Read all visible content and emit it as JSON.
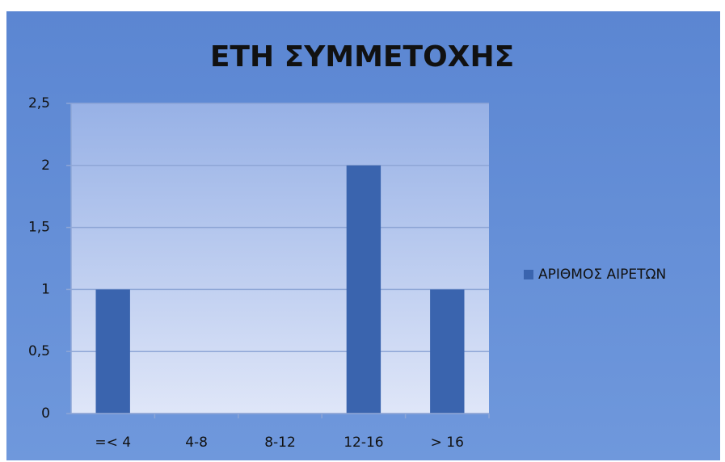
{
  "chart_data": {
    "type": "bar",
    "title": "ΕΤΗ ΣΥΜΜΕΤΟΧΗΣ",
    "categories": [
      "=< 4",
      "4-8",
      "8-12",
      "12-16",
      "> 16"
    ],
    "series": [
      {
        "name": "ΑΡΙΘΜΟΣ ΑΙΡΕΤΩΝ",
        "color": "#3a64ae",
        "values": [
          1,
          0,
          0,
          2,
          1
        ]
      }
    ],
    "ylim": [
      0,
      2.5
    ],
    "yticks": [
      0,
      {
        "value": 0.5,
        "label": "0,5"
      },
      1,
      {
        "value": 1.5,
        "label": "1,5"
      },
      2,
      {
        "value": 2.5,
        "label": "2,5"
      }
    ],
    "grid": true,
    "legend": "right"
  }
}
